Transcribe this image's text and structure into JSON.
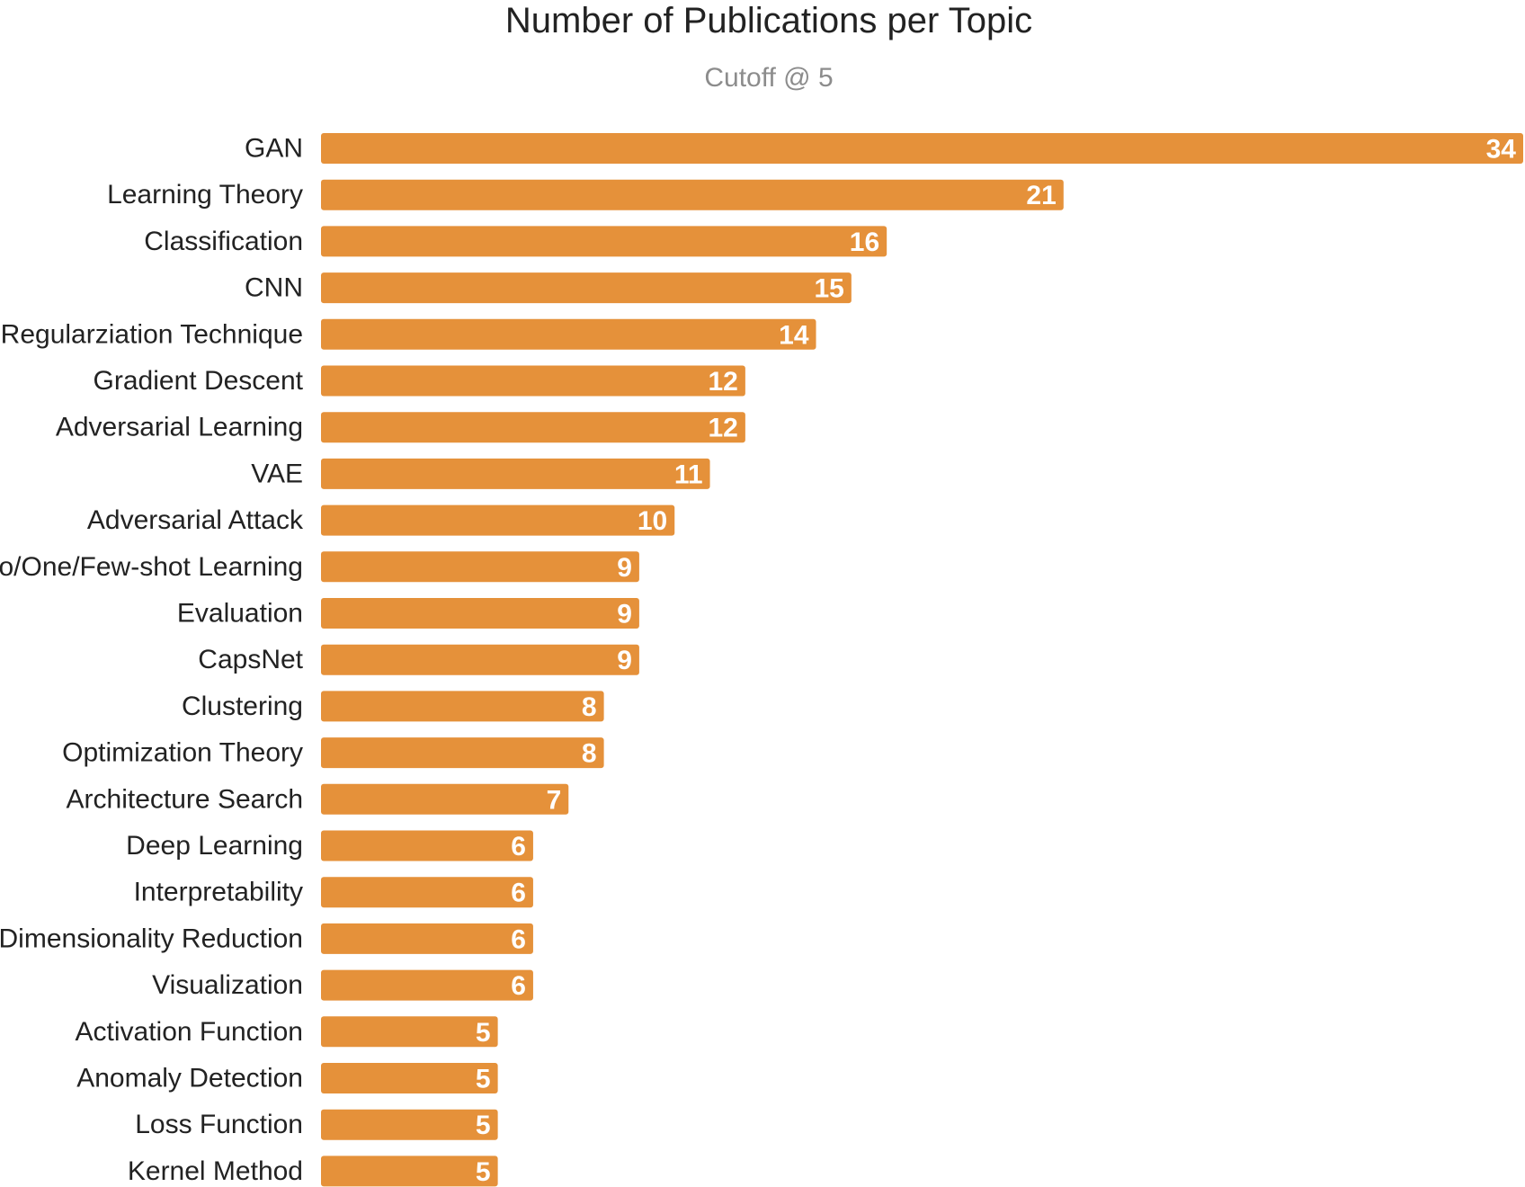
{
  "chart_data": {
    "type": "bar",
    "orientation": "horizontal",
    "title": "Number of Publications per Topic",
    "subtitle": "Cutoff @ 5",
    "categories": [
      "GAN",
      "Learning Theory",
      "Classification",
      "CNN",
      "Regularziation Technique",
      "Gradient Descent",
      "Adversarial Learning",
      "VAE",
      "Adversarial Attack",
      "Zero/One/Few-shot Learning",
      "Evaluation",
      "CapsNet",
      "Clustering",
      "Optimization Theory",
      "Architecture Search",
      "Deep Learning",
      "Interpretability",
      "Dimensionality Reduction",
      "Visualization",
      "Activation Function",
      "Anomaly Detection",
      "Loss Function",
      "Kernel Method"
    ],
    "values": [
      34,
      21,
      16,
      15,
      14,
      12,
      12,
      11,
      10,
      9,
      9,
      9,
      8,
      8,
      7,
      6,
      6,
      6,
      6,
      5,
      5,
      5,
      5
    ],
    "xlim": [
      0,
      34
    ],
    "grid": false,
    "legend": "none",
    "bar_color": "#e5913a",
    "value_label_color": "#ffffff",
    "label_color": "#222222",
    "subtitle_color": "#8c8c8c"
  }
}
